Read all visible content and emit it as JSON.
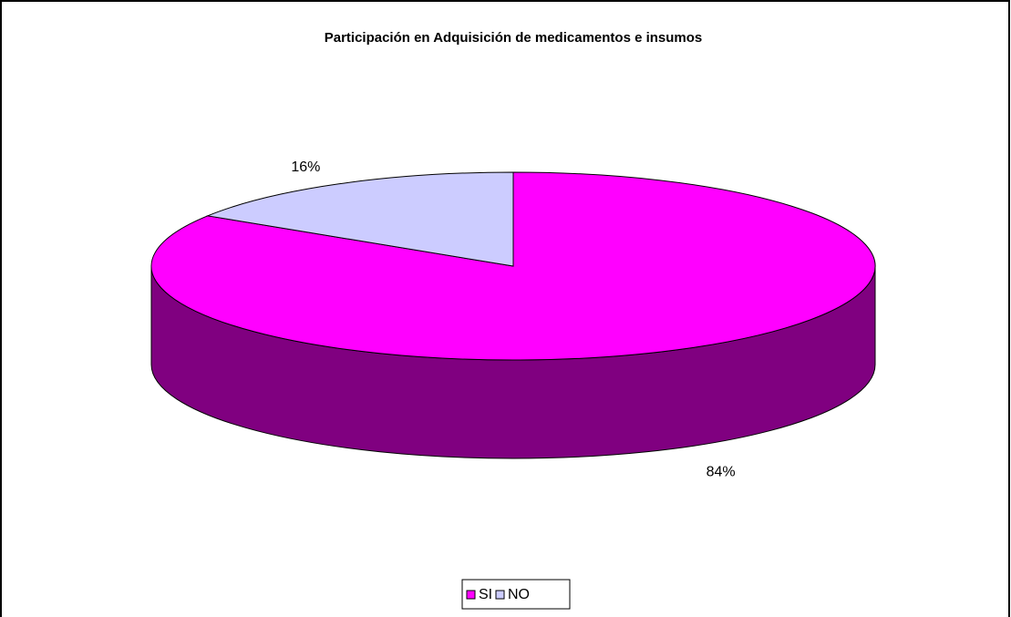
{
  "chart_data": {
    "type": "pie3d",
    "title": "Participación en Adquisición de medicamentos e insumos",
    "categories": [
      "SI",
      "NO"
    ],
    "values": [
      84,
      16
    ],
    "value_labels": [
      "84%",
      "16%"
    ],
    "colors": [
      "#ff00ff",
      "#ccccff"
    ],
    "legend": "bottom"
  }
}
